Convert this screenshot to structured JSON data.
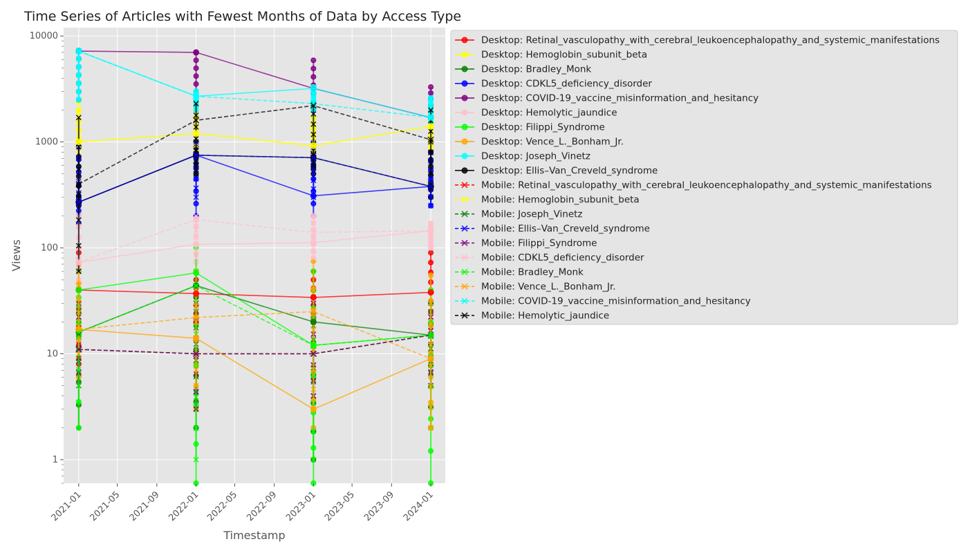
{
  "chart_data": {
    "type": "line",
    "title": "Time Series of Articles with Fewest Months of Data by Access Type",
    "xlabel": "Timestamp",
    "ylabel": "Views",
    "yscale": "log",
    "ylim": [
      0.6,
      12000
    ],
    "xlim": [
      "2020-11-15",
      "2024-02-15"
    ],
    "grid": true,
    "legend_position": "outside-right",
    "x_ticks": [
      "2021-01",
      "2021-05",
      "2021-09",
      "2022-01",
      "2022-05",
      "2022-09",
      "2023-01",
      "2023-05",
      "2023-09",
      "2024-01"
    ],
    "y_ticks": [
      "1",
      "10",
      "100",
      "1000",
      "10000"
    ],
    "x": [
      "2021-01-01",
      "2022-01-01",
      "2023-01-01",
      "2024-01-01"
    ],
    "series": [
      {
        "name": "Desktop: Retinal_vasculopathy_with_cerebral_leukoencephalopathy_and_systemic_manifestations",
        "color": "#ff0000",
        "style": "solid",
        "marker": "o",
        "values": [
          40,
          37,
          34,
          38
        ],
        "spread": [
          [
            8,
            90
          ],
          [
            20,
            60
          ],
          [
            20,
            60
          ],
          [
            25,
            90
          ]
        ]
      },
      {
        "name": "Desktop: Hemoglobin_subunit_beta",
        "color": "#ffff00",
        "style": "solid",
        "marker": "o",
        "values": [
          1000,
          1200,
          920,
          1400
        ],
        "spread": [
          [
            700,
            2400
          ],
          [
            700,
            2000
          ],
          [
            800,
            1700
          ],
          [
            900,
            2000
          ]
        ]
      },
      {
        "name": "Desktop: Bradley_Monk",
        "color": "#008000",
        "style": "solid",
        "marker": "o",
        "values": [
          16,
          44,
          20,
          15
        ],
        "spread": [
          [
            2,
            40
          ],
          [
            2,
            60
          ],
          [
            1,
            40
          ],
          [
            2,
            30
          ]
        ]
      },
      {
        "name": "Desktop: CDKL5_deficiency_disorder",
        "color": "#0000ff",
        "style": "solid",
        "marker": "o",
        "values": [
          270,
          750,
          310,
          380
        ],
        "spread": [
          [
            170,
            900
          ],
          [
            200,
            1000
          ],
          [
            200,
            1000
          ],
          [
            250,
            800
          ]
        ]
      },
      {
        "name": "Desktop: COVID-19_vaccine_misinformation_and_hesitancy",
        "color": "#800080",
        "style": "solid",
        "marker": "o",
        "values": [
          7200,
          7000,
          3200,
          1700
        ],
        "spread": [
          [
            2500,
            7300
          ],
          [
            2500,
            7000
          ],
          [
            2000,
            5900
          ],
          [
            1500,
            3300
          ]
        ]
      },
      {
        "name": "Desktop: Hemolytic_jaundice",
        "color": "#ffc0cb",
        "style": "solid",
        "marker": "o",
        "values": [
          73,
          108,
          112,
          145
        ],
        "spread": [
          [
            50,
            200
          ],
          [
            60,
            190
          ],
          [
            80,
            200
          ],
          [
            100,
            170
          ]
        ]
      },
      {
        "name": "Desktop: Filippi_Syndrome",
        "color": "#00ff00",
        "style": "solid",
        "marker": "o",
        "values": [
          40,
          58,
          12,
          15
        ],
        "spread": [
          [
            2,
            60
          ],
          [
            0.6,
            100
          ],
          [
            0.6,
            60
          ],
          [
            0.6,
            40
          ]
        ]
      },
      {
        "name": "Desktop: Vence_L._Bonham_Jr.",
        "color": "#ffa500",
        "style": "solid",
        "marker": "o",
        "values": [
          17,
          14,
          3,
          9
        ],
        "spread": [
          [
            6,
            70
          ],
          [
            3,
            60
          ],
          [
            2,
            75
          ],
          [
            2,
            55
          ]
        ]
      },
      {
        "name": "Desktop: Joseph_Vinetz",
        "color": "#00ffff",
        "style": "solid",
        "marker": "o",
        "values": [
          7200,
          2700,
          3200,
          1700
        ],
        "spread": [
          [
            2500,
            7300
          ],
          [
            2000,
            3000
          ],
          [
            2000,
            3300
          ],
          [
            1500,
            2600
          ]
        ]
      },
      {
        "name": "Desktop: Ellis–Van_Creveld_syndrome",
        "color": "#000000",
        "style": "solid",
        "marker": "o",
        "values": [
          270,
          750,
          710,
          380
        ],
        "spread": [
          [
            250,
            900
          ],
          [
            500,
            1000
          ],
          [
            500,
            900
          ],
          [
            300,
            800
          ]
        ]
      },
      {
        "name": "Mobile: Retinal_vasculopathy_with_cerebral_leukoencephalopathy_and_systemic_manifestations",
        "color": "#ff0000",
        "style": "dashed",
        "marker": "x",
        "values": [
          11,
          10,
          10,
          15
        ],
        "spread": [
          [
            5,
            30
          ],
          [
            3,
            30
          ],
          [
            4,
            30
          ],
          [
            5,
            30
          ]
        ]
      },
      {
        "name": "Mobile: Hemoglobin_subunit_beta",
        "color": "#ffff00",
        "style": "dashed",
        "marker": "x",
        "values": [
          1000,
          1200,
          920,
          1400
        ],
        "spread": [
          [
            800,
            2000
          ],
          [
            800,
            2000
          ],
          [
            800,
            1600
          ],
          [
            900,
            1800
          ]
        ]
      },
      {
        "name": "Mobile: Joseph_Vinetz",
        "color": "#008000",
        "style": "dashed",
        "marker": "x",
        "values": [
          11,
          10,
          10,
          15
        ],
        "spread": [
          [
            5,
            25
          ],
          [
            3,
            25
          ],
          [
            4,
            25
          ],
          [
            5,
            25
          ]
        ]
      },
      {
        "name": "Mobile: Ellis–Van_Creveld_syndrome",
        "color": "#0000ff",
        "style": "dashed",
        "marker": "x",
        "values": [
          270,
          750,
          710,
          380
        ],
        "spread": [
          [
            200,
            900
          ],
          [
            300,
            1000
          ],
          [
            300,
            900
          ],
          [
            250,
            800
          ]
        ]
      },
      {
        "name": "Mobile: Filippi_Syndrome",
        "color": "#800080",
        "style": "dashed",
        "marker": "x",
        "values": [
          11,
          10,
          10,
          15
        ],
        "spread": [
          [
            5,
            30
          ],
          [
            3,
            30
          ],
          [
            4,
            30
          ],
          [
            5,
            30
          ]
        ]
      },
      {
        "name": "Mobile: CDKL5_deficiency_disorder",
        "color": "#ffc0cb",
        "style": "dashed",
        "marker": "x",
        "values": [
          73,
          185,
          140,
          145
        ],
        "spread": [
          [
            50,
            200
          ],
          [
            80,
            200
          ],
          [
            80,
            200
          ],
          [
            100,
            170
          ]
        ]
      },
      {
        "name": "Mobile: Bradley_Monk",
        "color": "#00ff00",
        "style": "dashed",
        "marker": "x",
        "values": [
          16,
          44,
          12,
          15
        ],
        "spread": [
          [
            5,
            40
          ],
          [
            1,
            60
          ],
          [
            1,
            40
          ],
          [
            2,
            30
          ]
        ]
      },
      {
        "name": "Mobile: Vence_L._Bonham_Jr.",
        "color": "#ffa500",
        "style": "dashed",
        "marker": "x",
        "values": [
          17,
          22,
          25,
          9
        ],
        "spread": [
          [
            10,
            60
          ],
          [
            5,
            40
          ],
          [
            3,
            40
          ],
          [
            2,
            30
          ]
        ]
      },
      {
        "name": "Mobile: COVID-19_vaccine_misinformation_and_hesitancy",
        "color": "#00ffff",
        "style": "dashed",
        "marker": "x",
        "values": [
          7200,
          2700,
          2300,
          1700
        ],
        "spread": [
          [
            2500,
            7300
          ],
          [
            2000,
            3000
          ],
          [
            2000,
            3300
          ],
          [
            1500,
            2600
          ]
        ]
      },
      {
        "name": "Mobile: Hemolytic_jaundice",
        "color": "#000000",
        "style": "dashed",
        "marker": "x",
        "values": [
          400,
          1600,
          2200,
          1050
        ],
        "spread": [
          [
            60,
            1700
          ],
          [
            500,
            2300
          ],
          [
            600,
            2300
          ],
          [
            500,
            2000
          ]
        ]
      }
    ]
  }
}
